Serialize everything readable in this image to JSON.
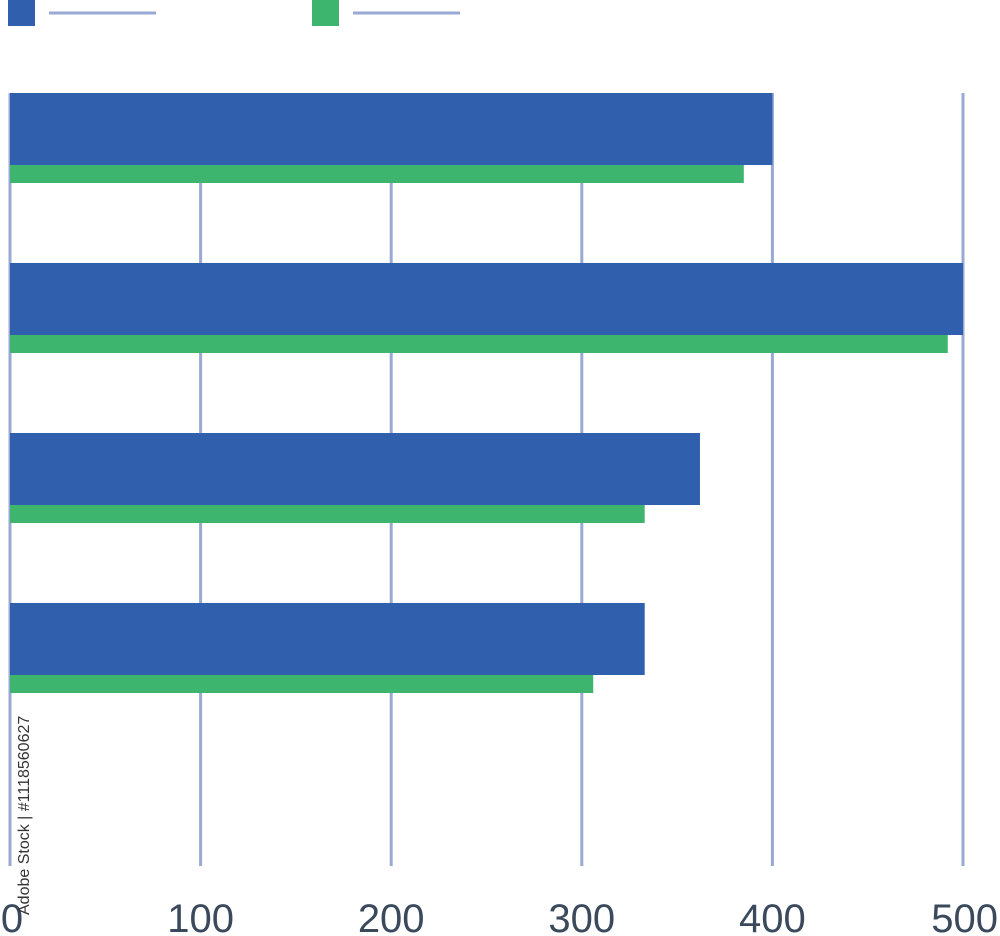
{
  "chart_data": {
    "type": "bar",
    "orientation": "horizontal",
    "categories": [
      "",
      "",
      "",
      ""
    ],
    "series": [
      {
        "color": "#2f5fad",
        "values": [
          400,
          500,
          362,
          333
        ]
      },
      {
        "color": "#3db56f",
        "values": [
          385,
          492,
          333,
          306
        ]
      }
    ],
    "xlim": [
      0,
      500
    ],
    "x_ticks": [
      "0",
      "100",
      "200",
      "300",
      "400",
      "500"
    ],
    "grid": true,
    "grid_color": "#9aa8d4",
    "legend_position": "top-left",
    "legend_line_color": "#9aa8d4"
  },
  "watermark": {
    "text": "Adobe Stock | #1118560627"
  }
}
